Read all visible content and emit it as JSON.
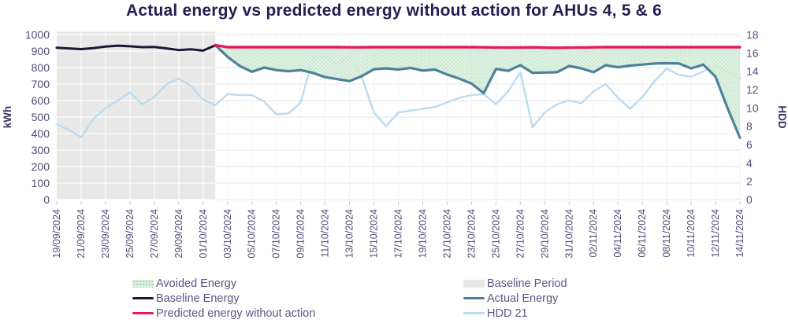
{
  "title": "Actual energy vs predicted energy without action for AHUs 4, 5 & 6",
  "colors": {
    "title_text": "#241f52",
    "axis_text": "#514c78",
    "baseline_energy": "#1c1838",
    "actual_energy": "#4d8299",
    "predicted_energy": "#e5195f",
    "hdd": "#badcf0",
    "avoided_fill": "#d9efdc",
    "baseline_band": "#e9e8e8",
    "gridline": "#e4e3ea"
  },
  "chart_data": {
    "type": "line",
    "title": "Actual energy vs predicted energy without action for AHUs 4, 5 & 6",
    "ylabel_left": "kWh",
    "ylabel_right": "HDD",
    "ylim_left": [
      0,
      1000
    ],
    "ylim_right": [
      0,
      18
    ],
    "yticks_left": [
      0,
      100,
      200,
      300,
      400,
      500,
      600,
      700,
      800,
      900,
      1000
    ],
    "yticks_right": [
      0,
      2,
      4,
      6,
      8,
      10,
      12,
      14,
      16,
      18
    ],
    "grid": true,
    "legend_position": "bottom",
    "dates": [
      "19/09/2024",
      "20/09/2024",
      "21/09/2024",
      "22/09/2024",
      "23/09/2024",
      "24/09/2024",
      "25/09/2024",
      "26/09/2024",
      "27/09/2024",
      "28/09/2024",
      "29/09/2024",
      "30/09/2024",
      "01/10/2024",
      "02/10/2024",
      "03/10/2024",
      "04/10/2024",
      "05/10/2024",
      "06/10/2024",
      "07/10/2024",
      "08/10/2024",
      "09/10/2024",
      "10/10/2024",
      "11/10/2024",
      "12/10/2024",
      "13/10/2024",
      "14/10/2024",
      "15/10/2024",
      "16/10/2024",
      "17/10/2024",
      "18/10/2024",
      "19/10/2024",
      "20/10/2024",
      "21/10/2024",
      "22/10/2024",
      "23/10/2024",
      "24/10/2024",
      "25/10/2024",
      "26/10/2024",
      "27/10/2024",
      "28/10/2024",
      "29/10/2024",
      "30/10/2024",
      "31/10/2024",
      "01/11/2024",
      "02/11/2024",
      "03/11/2024",
      "04/11/2024",
      "05/11/2024",
      "06/11/2024",
      "07/11/2024",
      "08/11/2024",
      "09/11/2024",
      "10/11/2024",
      "11/11/2024",
      "12/11/2024",
      "13/11/2024",
      "14/11/2024"
    ],
    "x_tick_labels": [
      "19/09/2024",
      "21/09/2024",
      "23/09/2024",
      "25/09/2024",
      "27/09/2024",
      "29/09/2024",
      "01/10/2024",
      "03/10/2024",
      "05/10/2024",
      "07/10/2024",
      "09/10/2024",
      "11/10/2024",
      "13/10/2024",
      "15/10/2024",
      "17/10/2024",
      "19/10/2024",
      "21/10/2024",
      "23/10/2024",
      "25/10/2024",
      "27/10/2024",
      "29/10/2024",
      "31/10/2024",
      "02/11/2024",
      "04/11/2024",
      "06/11/2024",
      "08/11/2024",
      "10/11/2024",
      "12/11/2024",
      "14/11/2024"
    ],
    "baseline_period": {
      "label": "Baseline Period",
      "start": "19/09/2024",
      "end": "02/10/2024",
      "start_index": 0,
      "end_index": 13,
      "color": "#e9e8e8"
    },
    "avoided_energy": {
      "label": "Avoided Energy",
      "between": [
        "Predicted energy without action",
        "Actual Energy"
      ],
      "color": "#d9efdc",
      "dot_color": "#aedcbf"
    },
    "series": [
      {
        "name": "Baseline Energy",
        "axis": "left",
        "color": "#1c1838",
        "start_index": 0,
        "values": [
          920,
          916,
          912,
          918,
          927,
          933,
          929,
          924,
          925,
          916,
          906,
          911,
          903,
          935
        ]
      },
      {
        "name": "Actual Energy",
        "axis": "left",
        "color": "#4d8299",
        "start_index": 13,
        "values": [
          935,
          865,
          810,
          775,
          800,
          785,
          778,
          785,
          768,
          742,
          730,
          718,
          748,
          790,
          795,
          788,
          798,
          782,
          788,
          758,
          733,
          703,
          645,
          792,
          780,
          815,
          768,
          770,
          772,
          810,
          795,
          772,
          815,
          802,
          812,
          818,
          825,
          826,
          825,
          795,
          818,
          745,
          552,
          375
        ]
      },
      {
        "name": "Predicted energy without action",
        "axis": "left",
        "color": "#e5195f",
        "start_index": 13,
        "values": [
          935,
          924,
          924,
          924,
          924,
          924,
          924,
          924,
          924,
          924,
          924,
          923,
          923,
          924,
          924,
          924,
          924,
          924,
          924,
          924,
          924,
          924,
          923,
          922,
          921,
          922,
          923,
          921,
          920,
          921,
          922,
          923,
          924,
          924,
          924,
          924,
          924,
          924,
          924,
          924,
          924,
          924,
          924,
          924
        ]
      },
      {
        "name": "HDD 21",
        "axis": "right",
        "color": "#badcf0",
        "start_index": 0,
        "values": [
          8.2,
          7.6,
          6.8,
          8.8,
          10,
          10.8,
          11.7,
          10.4,
          11.2,
          12.6,
          13.2,
          12.4,
          10.9,
          10.3,
          11.5,
          11.4,
          11.4,
          10.7,
          9.3,
          9.4,
          10.6,
          15.4,
          15.6,
          14.7,
          15.7,
          13.4,
          9.5,
          8,
          9.5,
          9.7,
          9.9,
          10.1,
          10.6,
          11.1,
          11.4,
          11.5,
          10.4,
          11.8,
          13.9,
          7.9,
          9.5,
          10.4,
          10.8,
          10.5,
          11.8,
          12.6,
          11.1,
          9.9,
          11.2,
          12.9,
          14.3,
          13.6,
          13.4,
          14,
          14.7,
          13.9,
          13.2
        ]
      }
    ]
  },
  "legend": {
    "columns": [
      [
        {
          "label": "Avoided Energy",
          "swatch": "area",
          "color": "#d9efdc"
        },
        {
          "label": "Baseline Energy",
          "swatch": "line",
          "color": "#1c1838"
        },
        {
          "label": "Predicted energy without action",
          "swatch": "line",
          "color": "#e5195f"
        }
      ],
      [
        {
          "label": "Baseline Period",
          "swatch": "band",
          "color": "#e8e7e7"
        },
        {
          "label": "Actual Energy",
          "swatch": "line",
          "color": "#4d8299"
        },
        {
          "label": "HDD 21",
          "swatch": "line",
          "color": "#badcf0"
        }
      ]
    ]
  }
}
